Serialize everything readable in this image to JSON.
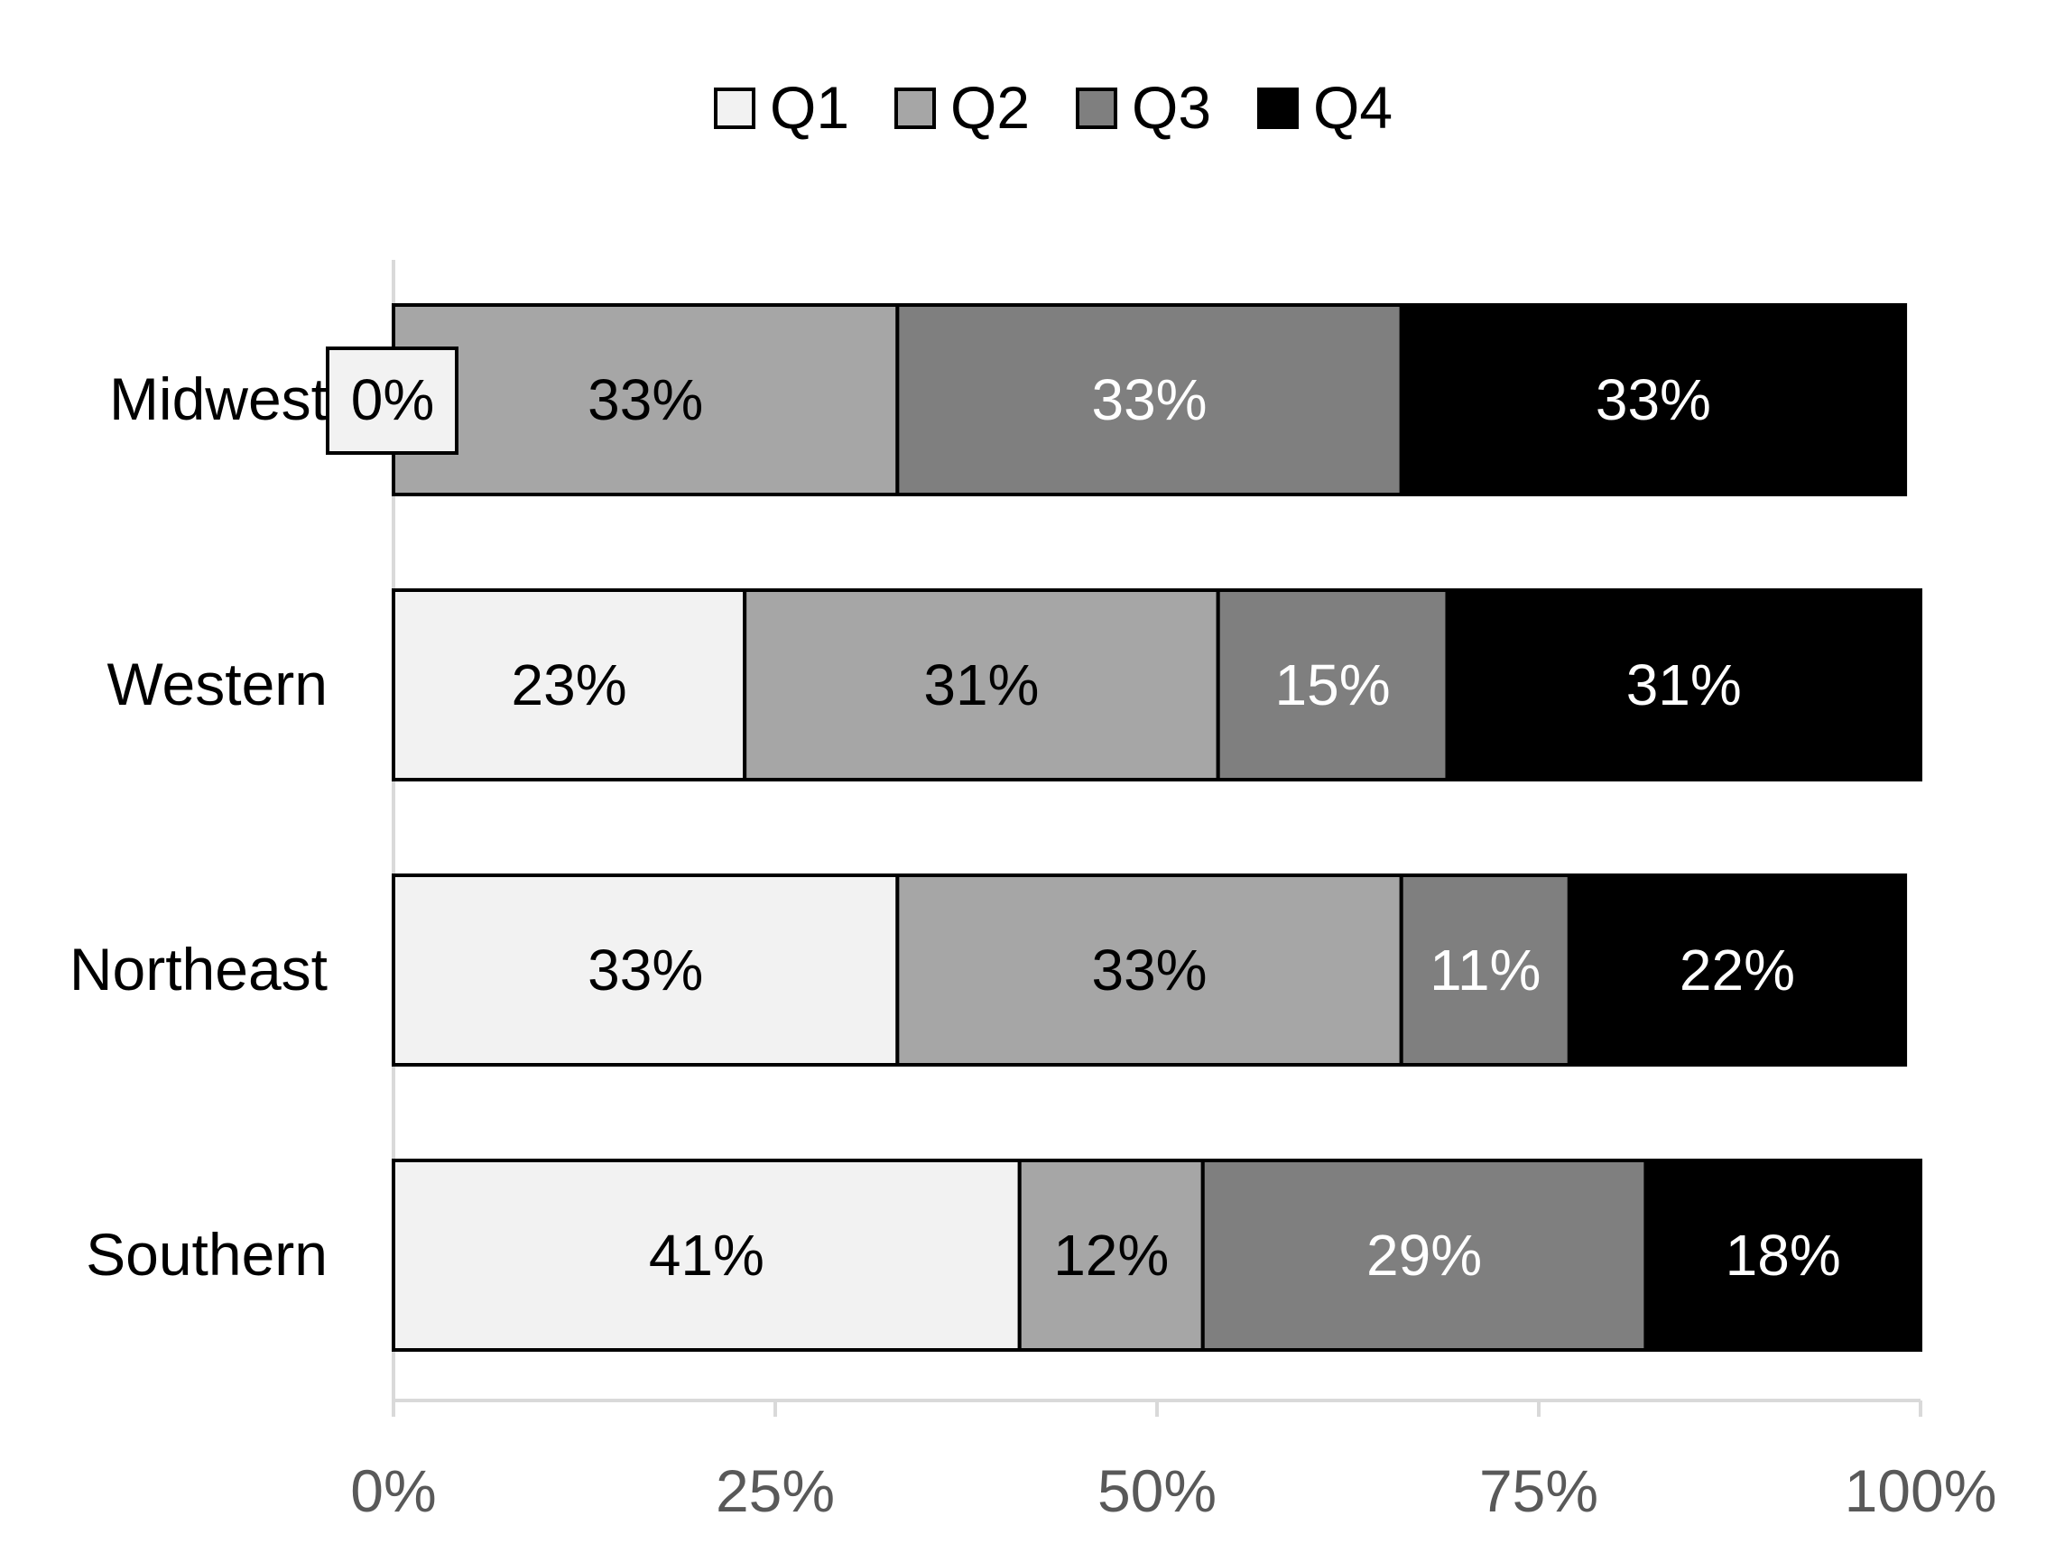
{
  "chart_data": {
    "type": "bar",
    "orientation": "horizontal",
    "stacked": "percent",
    "categories": [
      "Midwest",
      "Western",
      "Northeast",
      "Southern"
    ],
    "series": [
      {
        "name": "Q1",
        "color": "#f2f2f2",
        "label_color": "#000000",
        "values": [
          0,
          23,
          33,
          41
        ],
        "labels": [
          "0%",
          "23%",
          "33%",
          "41%"
        ]
      },
      {
        "name": "Q2",
        "color": "#a6a6a6",
        "label_color": "#000000",
        "values": [
          33,
          31,
          33,
          12
        ],
        "labels": [
          "33%",
          "31%",
          "33%",
          "12%"
        ]
      },
      {
        "name": "Q3",
        "color": "#7f7f7f",
        "label_color": "#ffffff",
        "values": [
          33,
          15,
          11,
          29
        ],
        "labels": [
          "33%",
          "15%",
          "11%",
          "29%"
        ]
      },
      {
        "name": "Q4",
        "color": "#000000",
        "label_color": "#ffffff",
        "values": [
          33,
          31,
          22,
          18
        ],
        "labels": [
          "33%",
          "31%",
          "22%",
          "18%"
        ]
      }
    ],
    "xlim": [
      0,
      100
    ],
    "x_ticks": [
      0,
      25,
      50,
      75,
      100
    ],
    "x_tick_labels": [
      "0%",
      "25%",
      "50%",
      "75%",
      "100%"
    ],
    "title": "",
    "xlabel": "",
    "ylabel": "",
    "legend_position": "top",
    "grid": false
  }
}
